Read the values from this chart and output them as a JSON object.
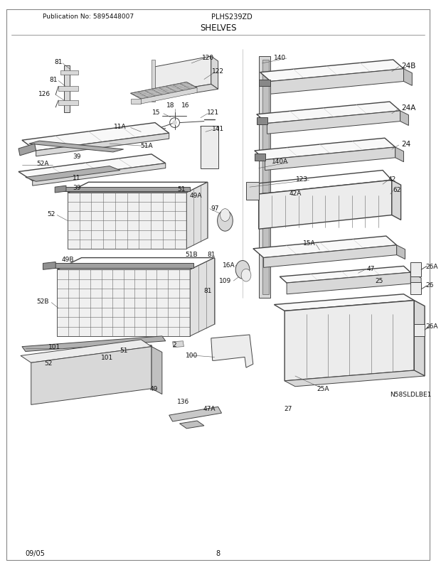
{
  "title": "SHELVES",
  "pub_no": "Publication No: 5895448007",
  "model": "PLHS239ZD",
  "page": "8",
  "date": "09/05",
  "diagram_id": "N58SLDLBE1",
  "bg_color": "#ffffff",
  "line_color": "#444444",
  "text_color": "#111111",
  "fig_width": 6.2,
  "fig_height": 8.03,
  "dpi": 100
}
